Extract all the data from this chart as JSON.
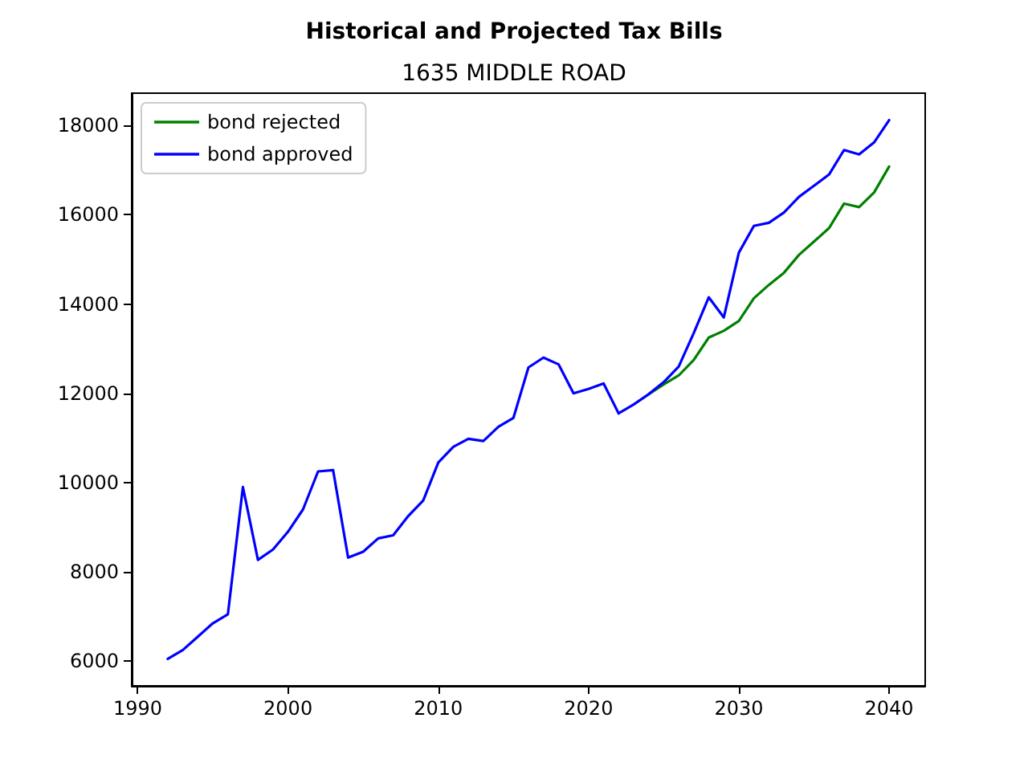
{
  "chart_data": {
    "type": "line",
    "title": "Historical and Projected Tax Bills",
    "subtitle": "1635 MIDDLE ROAD",
    "x": [
      1992,
      1993,
      1994,
      1995,
      1996,
      1997,
      1998,
      1999,
      2000,
      2001,
      2002,
      2003,
      2004,
      2005,
      2006,
      2007,
      2008,
      2009,
      2010,
      2011,
      2012,
      2013,
      2014,
      2015,
      2016,
      2017,
      2018,
      2019,
      2020,
      2021,
      2022,
      2023,
      2024,
      2025,
      2026,
      2027,
      2028,
      2029,
      2030,
      2031,
      2032,
      2033,
      2034,
      2035,
      2036,
      2037,
      2038,
      2039,
      2040
    ],
    "series": [
      {
        "name": "bond rejected",
        "color": "#008000",
        "values": [
          null,
          null,
          null,
          null,
          null,
          null,
          null,
          null,
          null,
          null,
          null,
          null,
          null,
          null,
          null,
          null,
          null,
          null,
          null,
          null,
          null,
          null,
          null,
          null,
          null,
          null,
          null,
          null,
          null,
          null,
          null,
          null,
          11980,
          12200,
          12400,
          12750,
          13250,
          13400,
          13620,
          14130,
          14430,
          14700,
          15100,
          15400,
          15700,
          16250,
          16170,
          16500,
          17080
        ]
      },
      {
        "name": "bond approved",
        "color": "#0000ff",
        "values": [
          6050,
          6250,
          6550,
          6850,
          7050,
          9900,
          8270,
          8500,
          8900,
          9400,
          10250,
          10280,
          8320,
          8450,
          8750,
          8820,
          9250,
          9600,
          10450,
          10800,
          10980,
          10930,
          11250,
          11450,
          12580,
          12800,
          12650,
          12000,
          12100,
          12220,
          11550,
          11750,
          11980,
          12250,
          12600,
          13350,
          14150,
          13700,
          15150,
          15750,
          15820,
          16050,
          16400,
          16650,
          16900,
          17450,
          17350,
          17620,
          18120
        ]
      }
    ],
    "xlim": [
      1989.6,
      2042.4
    ],
    "xticks": [
      1990,
      2000,
      2010,
      2020,
      2030,
      2040
    ],
    "ylim": [
      5447,
      18723
    ],
    "yticks": [
      6000,
      8000,
      10000,
      12000,
      14000,
      16000,
      18000
    ],
    "grid": false,
    "legend": "top left",
    "marker": "none",
    "line_style": "solid"
  }
}
